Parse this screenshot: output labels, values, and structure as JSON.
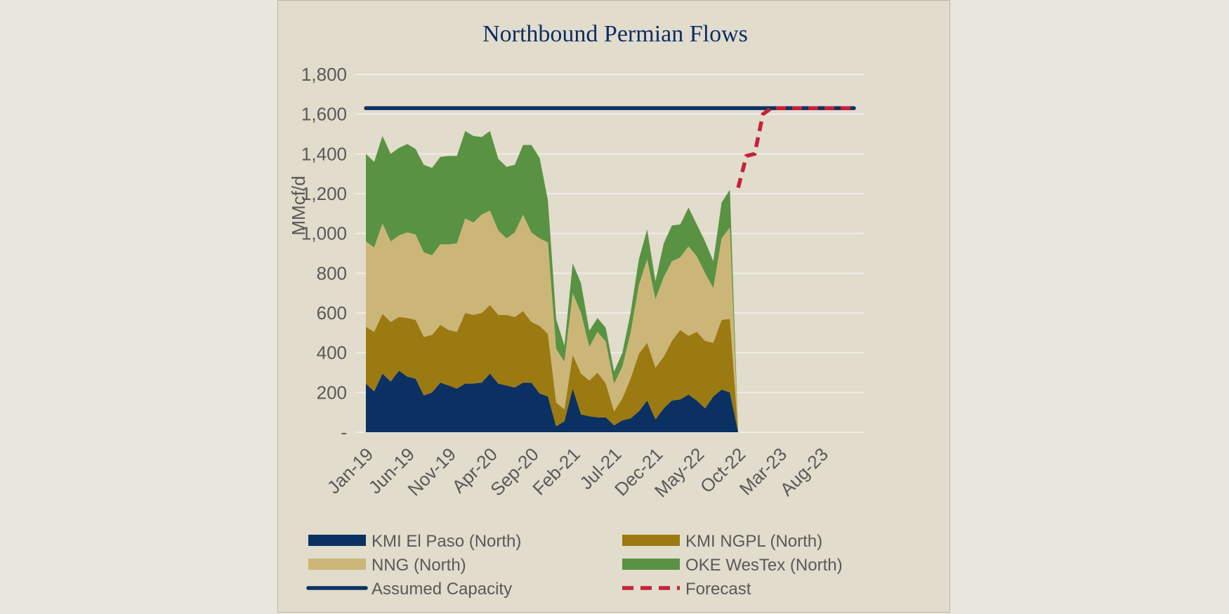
{
  "chart_data": {
    "type": "area",
    "title": "Northbound Permian Flows",
    "ylabel": "MMcf/d",
    "xlabel": "",
    "ylim": [
      0,
      1800
    ],
    "ytick_labels": [
      "-",
      "200",
      "400",
      "600",
      "800",
      "1,000",
      "1,200",
      "1,400",
      "1,600",
      "1,800"
    ],
    "ytick_values": [
      0,
      200,
      400,
      600,
      800,
      1000,
      1200,
      1400,
      1600,
      1800
    ],
    "grid": "horizontal",
    "x_months": [
      "Jan-19",
      "Feb-19",
      "Mar-19",
      "Apr-19",
      "May-19",
      "Jun-19",
      "Jul-19",
      "Aug-19",
      "Sep-19",
      "Oct-19",
      "Nov-19",
      "Dec-19",
      "Jan-20",
      "Feb-20",
      "Mar-20",
      "Apr-20",
      "May-20",
      "Jun-20",
      "Jul-20",
      "Aug-20",
      "Sep-20",
      "Oct-20",
      "Nov-20",
      "Dec-20",
      "Jan-21",
      "Feb-21",
      "Mar-21",
      "Apr-21",
      "May-21",
      "Jun-21",
      "Jul-21",
      "Aug-21",
      "Sep-21",
      "Oct-21",
      "Nov-21",
      "Dec-21",
      "Jan-22",
      "Feb-22",
      "Mar-22",
      "Apr-22",
      "May-22",
      "Jun-22",
      "Jul-22",
      "Aug-22",
      "Sep-22",
      "Oct-22",
      "Nov-22",
      "Dec-22",
      "Jan-23",
      "Feb-23",
      "Mar-23",
      "Apr-23",
      "May-23",
      "Jun-23",
      "Jul-23",
      "Aug-23",
      "Sep-23",
      "Oct-23",
      "Nov-23",
      "Dec-23"
    ],
    "x_tick_labels": [
      "Jan-19",
      "Jun-19",
      "Nov-19",
      "Apr-20",
      "Sep-20",
      "Feb-21",
      "Jul-21",
      "Dec-21",
      "May-22",
      "Oct-22",
      "Mar-23",
      "Aug-23"
    ],
    "series": [
      {
        "name": "KMI El Paso (North)",
        "color": "#0a3161",
        "kind": "stacked-area",
        "values": [
          245,
          205,
          295,
          255,
          310,
          280,
          270,
          185,
          200,
          250,
          235,
          220,
          245,
          245,
          250,
          295,
          245,
          235,
          225,
          250,
          250,
          195,
          180,
          30,
          55,
          220,
          90,
          80,
          75,
          75,
          35,
          60,
          70,
          105,
          160,
          65,
          120,
          160,
          165,
          190,
          160,
          120,
          180,
          215,
          200,
          0
        ]
      },
      {
        "name": "KMI NGPL (North)",
        "color": "#9b7a12",
        "kind": "stacked-area",
        "values": [
          285,
          300,
          300,
          300,
          270,
          295,
          295,
          295,
          290,
          290,
          280,
          285,
          355,
          345,
          350,
          345,
          345,
          355,
          355,
          360,
          305,
          340,
          315,
          120,
          60,
          170,
          205,
          180,
          225,
          170,
          70,
          110,
          200,
          290,
          290,
          260,
          260,
          300,
          350,
          295,
          345,
          340,
          270,
          350,
          370,
          0
        ]
      },
      {
        "name": "NNG (North)",
        "color": "#cbb678",
        "kind": "stacked-area",
        "values": [
          430,
          425,
          455,
          405,
          410,
          430,
          430,
          425,
          400,
          405,
          430,
          445,
          475,
          465,
          495,
          475,
          425,
          385,
          425,
          485,
          450,
          440,
          460,
          270,
          240,
          310,
          305,
          170,
          205,
          210,
          140,
          160,
          230,
          345,
          420,
          345,
          400,
          400,
          365,
          450,
          380,
          340,
          275,
          410,
          460,
          0
        ]
      },
      {
        "name": "OKE WesTex (North)",
        "color": "#5a9243",
        "kind": "stacked-area",
        "values": [
          440,
          430,
          440,
          440,
          440,
          445,
          430,
          440,
          440,
          440,
          445,
          440,
          440,
          435,
          390,
          400,
          360,
          360,
          340,
          350,
          440,
          405,
          210,
          150,
          80,
          150,
          150,
          80,
          70,
          70,
          60,
          70,
          100,
          130,
          150,
          90,
          170,
          180,
          165,
          195,
          160,
          160,
          135,
          180,
          190,
          0
        ]
      },
      {
        "name": "Assumed Capacity",
        "color": "#0a3161",
        "kind": "line",
        "value": 1630,
        "from": "Jan-19",
        "to": "Dec-23"
      },
      {
        "name": "Forecast",
        "color": "#c8203c",
        "kind": "dashed-line",
        "points": [
          {
            "x": "Oct-22",
            "y": 1230
          },
          {
            "x": "Nov-22",
            "y": 1390
          },
          {
            "x": "Dec-22",
            "y": 1400
          },
          {
            "x": "Jan-23",
            "y": 1600
          },
          {
            "x": "Feb-23",
            "y": 1630
          },
          {
            "x": "Dec-23",
            "y": 1630
          }
        ]
      }
    ],
    "legend": {
      "placement": "bottom",
      "items": [
        {
          "label": "KMI El Paso (North)",
          "color": "#0a3161",
          "kind": "box"
        },
        {
          "label": "KMI NGPL (North)",
          "color": "#9b7a12",
          "kind": "box"
        },
        {
          "label": "NNG (North)",
          "color": "#cbb678",
          "kind": "box"
        },
        {
          "label": "OKE WesTex (North)",
          "color": "#5a9243",
          "kind": "box"
        },
        {
          "label": "Assumed Capacity",
          "color": "#0a3161",
          "kind": "line"
        },
        {
          "label": "Forecast",
          "color": "#c8203c",
          "kind": "dash"
        }
      ]
    },
    "colors": {
      "panel_bg": "#e1dccb",
      "page_bg": "#e9e6dd",
      "gridline": "#f0ede6",
      "title": "#0e2d66",
      "text": "#595959"
    }
  }
}
